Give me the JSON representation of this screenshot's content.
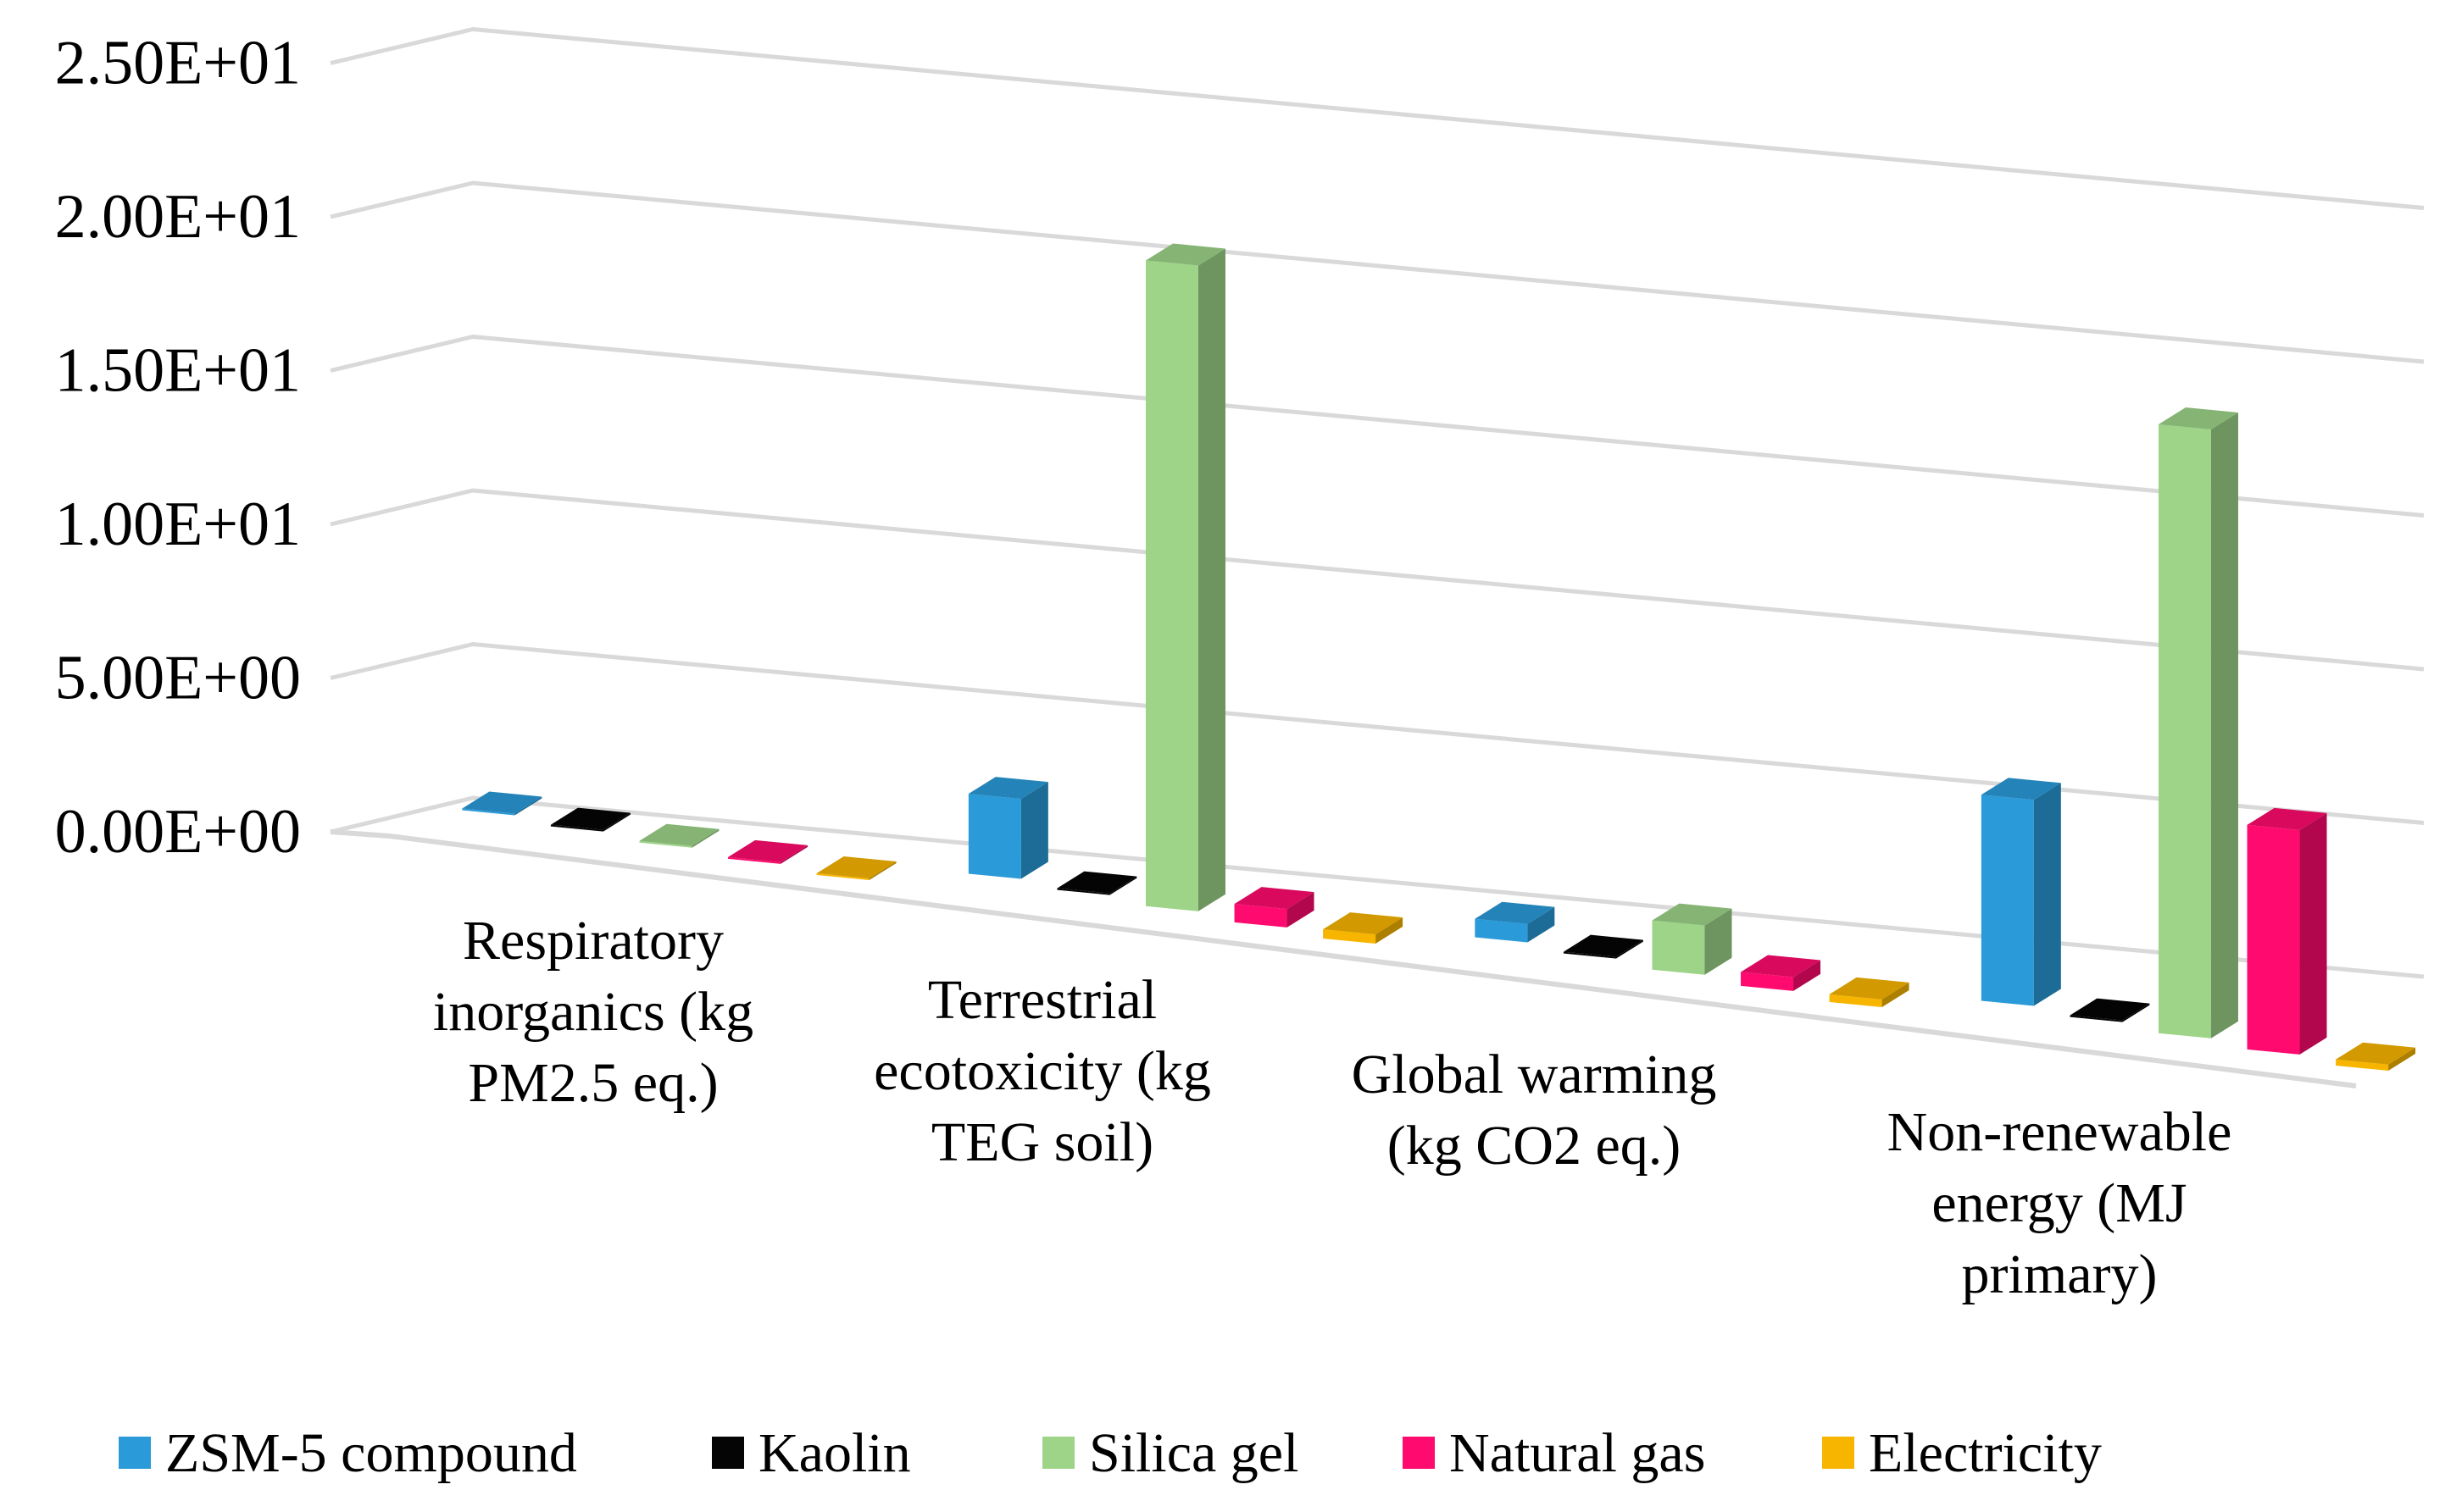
{
  "chart_data": {
    "type": "bar",
    "title": "",
    "xlabel": "",
    "ylabel": "",
    "ylim": [
      0,
      25
    ],
    "y_ticks": [
      "0.00E+00",
      "5.00E+00",
      "1.00E+01",
      "1.50E+01",
      "2.00E+01",
      "2.50E+01"
    ],
    "grid": true,
    "legend_position": "bottom",
    "categories": [
      [
        "Respiratory",
        "inorganics (kg",
        "PM2.5 eq.)"
      ],
      [
        "Terrestrial",
        "ecotoxicity (kg",
        "TEG soil)"
      ],
      [
        "Global warming",
        "(kg CO2 eq.)"
      ],
      [
        "Non-renewable",
        "energy (MJ",
        "primary)"
      ]
    ],
    "series": [
      {
        "name": "ZSM-5 compound",
        "color": "#2a9ad8",
        "values": [
          0.05,
          2.6,
          0.6,
          6.7
        ]
      },
      {
        "name": "Kaolin",
        "color": "#050505",
        "values": [
          0.01,
          0.05,
          0.05,
          0.05
        ]
      },
      {
        "name": "Silica gel",
        "color": "#9dd488",
        "values": [
          0.05,
          21.0,
          1.6,
          19.8
        ]
      },
      {
        "name": "Natural gas",
        "color": "#ff0a6e",
        "values": [
          0.05,
          0.6,
          0.45,
          7.3
        ]
      },
      {
        "name": "Electricity",
        "color": "#f7b500",
        "values": [
          0.03,
          0.3,
          0.25,
          0.2
        ]
      }
    ]
  }
}
